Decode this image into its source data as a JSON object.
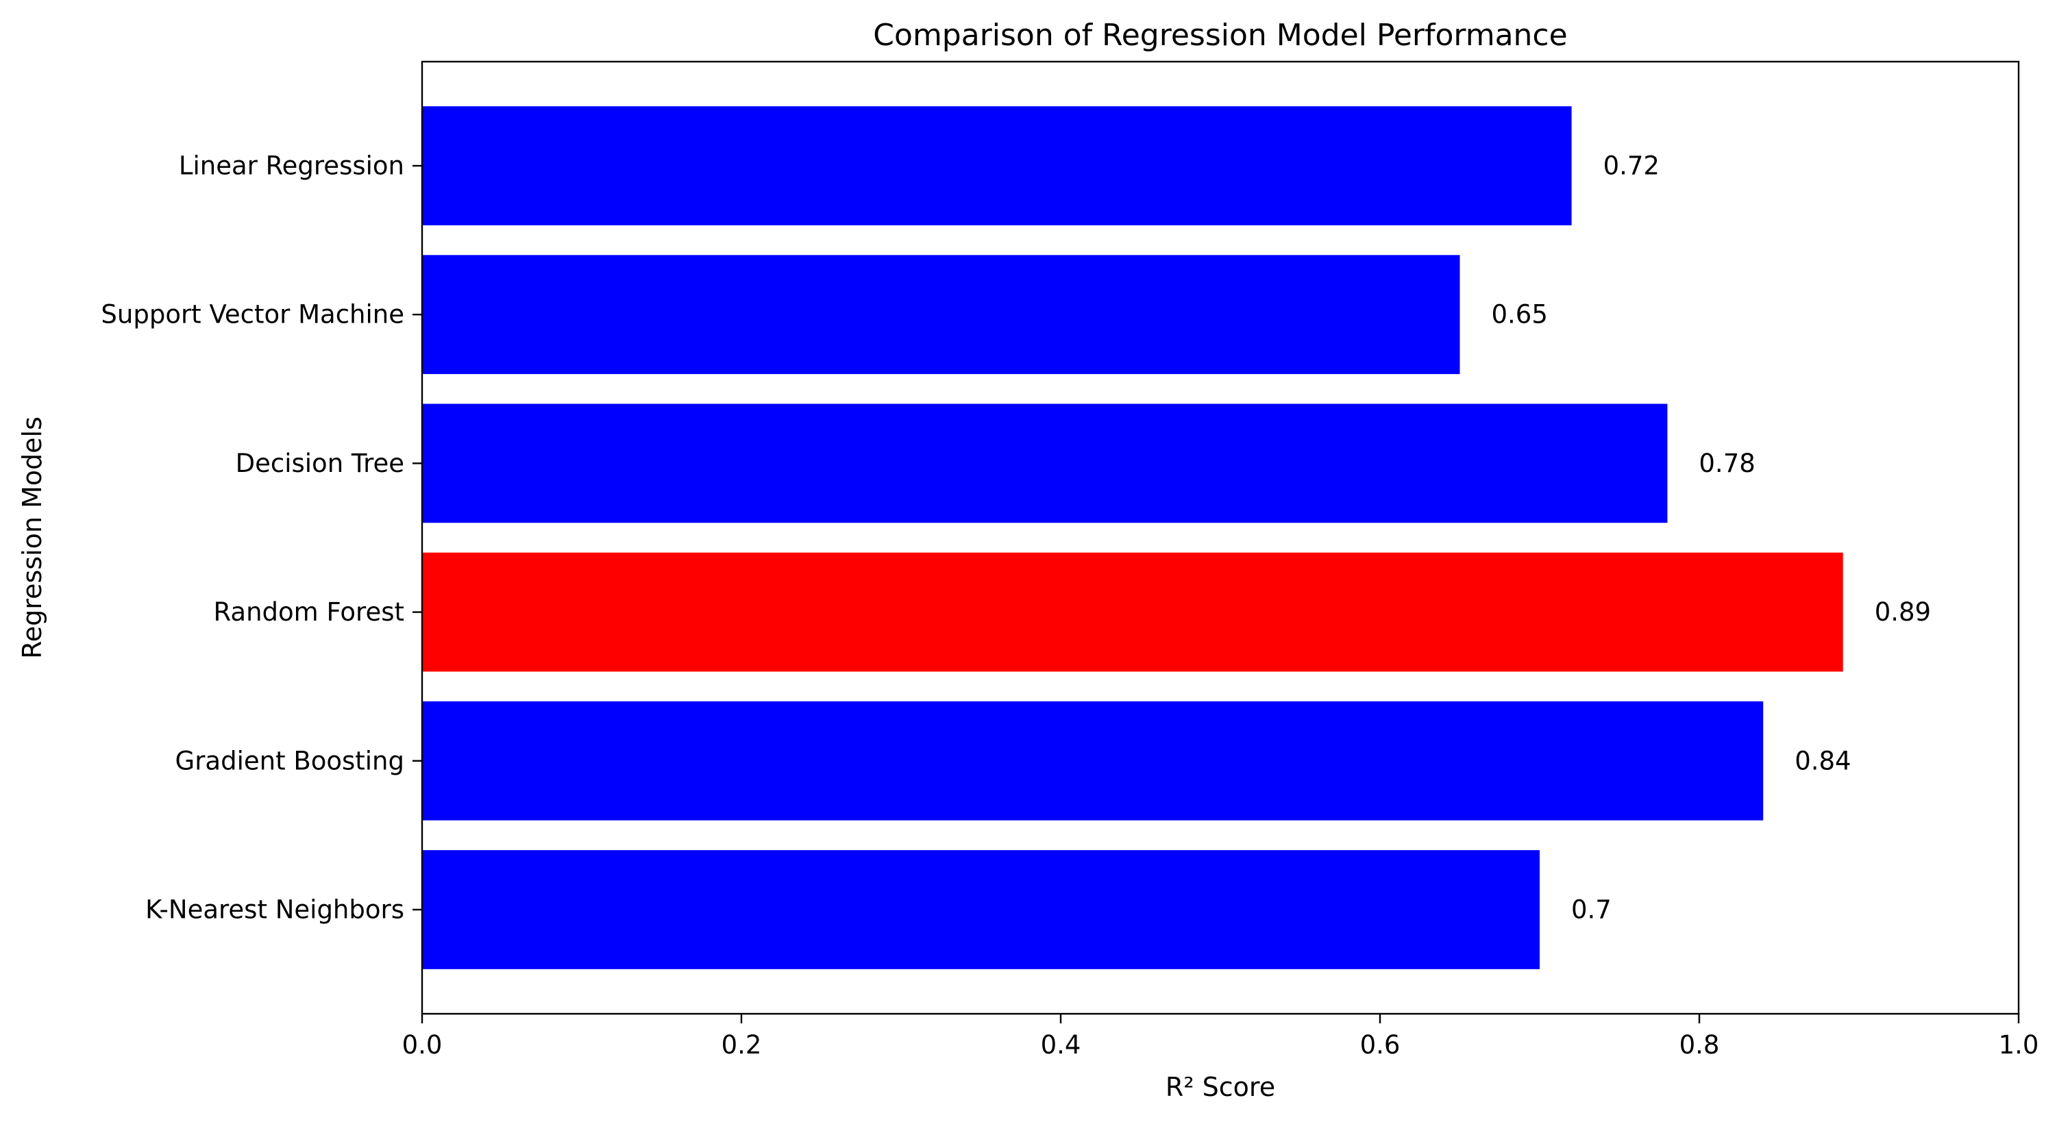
{
  "chart_data": {
    "type": "bar",
    "orientation": "horizontal",
    "title": "Comparison of Regression Model Performance",
    "xlabel": "R² Score",
    "ylabel": "Regression Models",
    "categories": [
      "Linear Regression",
      "Support Vector Machine",
      "Decision Tree",
      "Random Forest",
      "Gradient Boosting",
      "K-Nearest Neighbors"
    ],
    "values": [
      0.72,
      0.65,
      0.78,
      0.89,
      0.84,
      0.7
    ],
    "value_labels": [
      "0.72",
      "0.65",
      "0.78",
      "0.89",
      "0.84",
      "0.7"
    ],
    "bar_colors": [
      "#0000ff",
      "#0000ff",
      "#0000ff",
      "#ff0000",
      "#0000ff",
      "#0000ff"
    ],
    "xlim": [
      0,
      1.0
    ],
    "xticks": [
      0.0,
      0.2,
      0.4,
      0.6,
      0.8,
      1.0
    ],
    "xtick_labels": [
      "0.0",
      "0.2",
      "0.4",
      "0.6",
      "0.8",
      "1.0"
    ],
    "grid": false,
    "legend": "none"
  }
}
